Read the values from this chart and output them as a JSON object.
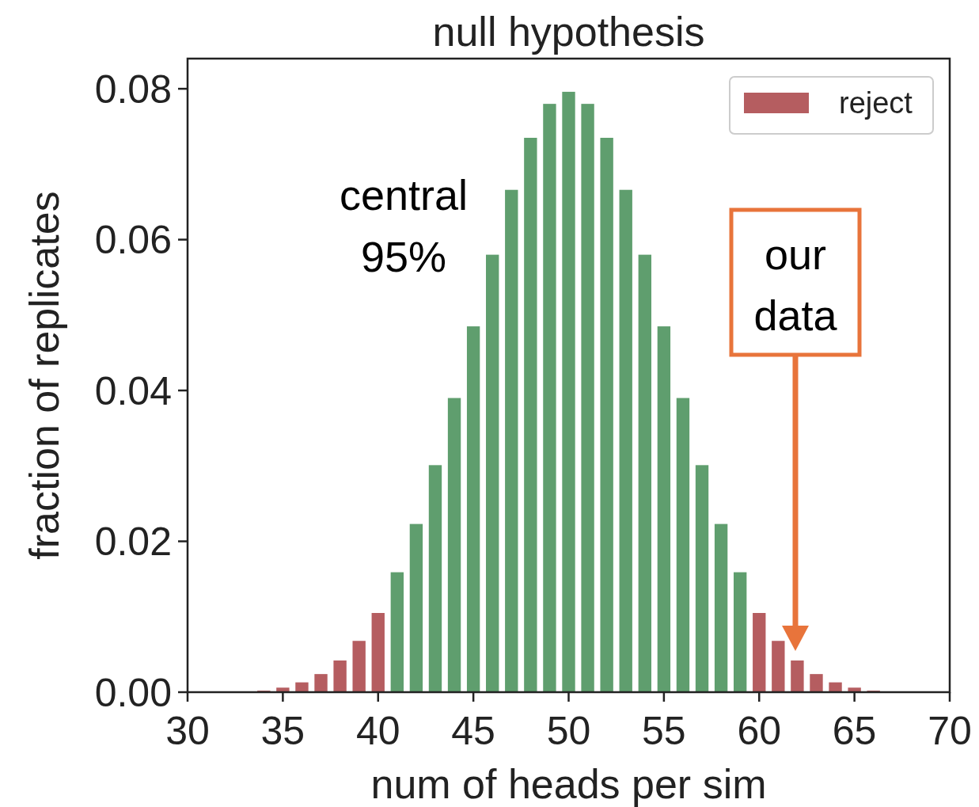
{
  "chart_data": {
    "type": "bar",
    "title": "null hypothesis",
    "xlabel": "num of heads per sim",
    "ylabel": "fraction of replicates",
    "xlim": [
      30,
      70
    ],
    "xticks": [
      30,
      35,
      40,
      45,
      50,
      55,
      60,
      65,
      70
    ],
    "ylim": [
      0,
      0.084
    ],
    "yticks": [
      {
        "value": 0,
        "label": "0.00"
      },
      {
        "value": 0.02,
        "label": "0.02"
      },
      {
        "value": 0.04,
        "label": "0.04"
      },
      {
        "value": 0.06,
        "label": "0.06"
      },
      {
        "value": 0.08,
        "label": "0.08"
      }
    ],
    "series": [
      {
        "color": "#5f9e6e",
        "x": [
          41,
          42,
          43,
          44,
          45,
          46,
          47,
          48,
          49,
          50,
          51,
          52,
          53,
          54,
          55,
          56,
          57,
          58,
          59
        ],
        "values": [
          0.0159,
          0.0223,
          0.0301,
          0.039,
          0.0485,
          0.058,
          0.0666,
          0.0735,
          0.078,
          0.0796,
          0.078,
          0.0735,
          0.0666,
          0.058,
          0.0485,
          0.039,
          0.0301,
          0.0223,
          0.0159
        ]
      },
      {
        "name": "reject",
        "color": "#b55d60",
        "x": [
          34,
          35,
          36,
          37,
          38,
          39,
          40,
          60,
          61,
          62,
          63,
          64,
          65,
          66
        ],
        "values": [
          0.0002,
          0.0006,
          0.0013,
          0.0024,
          0.0042,
          0.0068,
          0.0105,
          0.0105,
          0.0068,
          0.0042,
          0.0024,
          0.0013,
          0.0006,
          0.0002
        ]
      }
    ],
    "annotations": [
      "central\n95%",
      "our\ndata"
    ],
    "legend": "top right",
    "grid": false
  }
}
